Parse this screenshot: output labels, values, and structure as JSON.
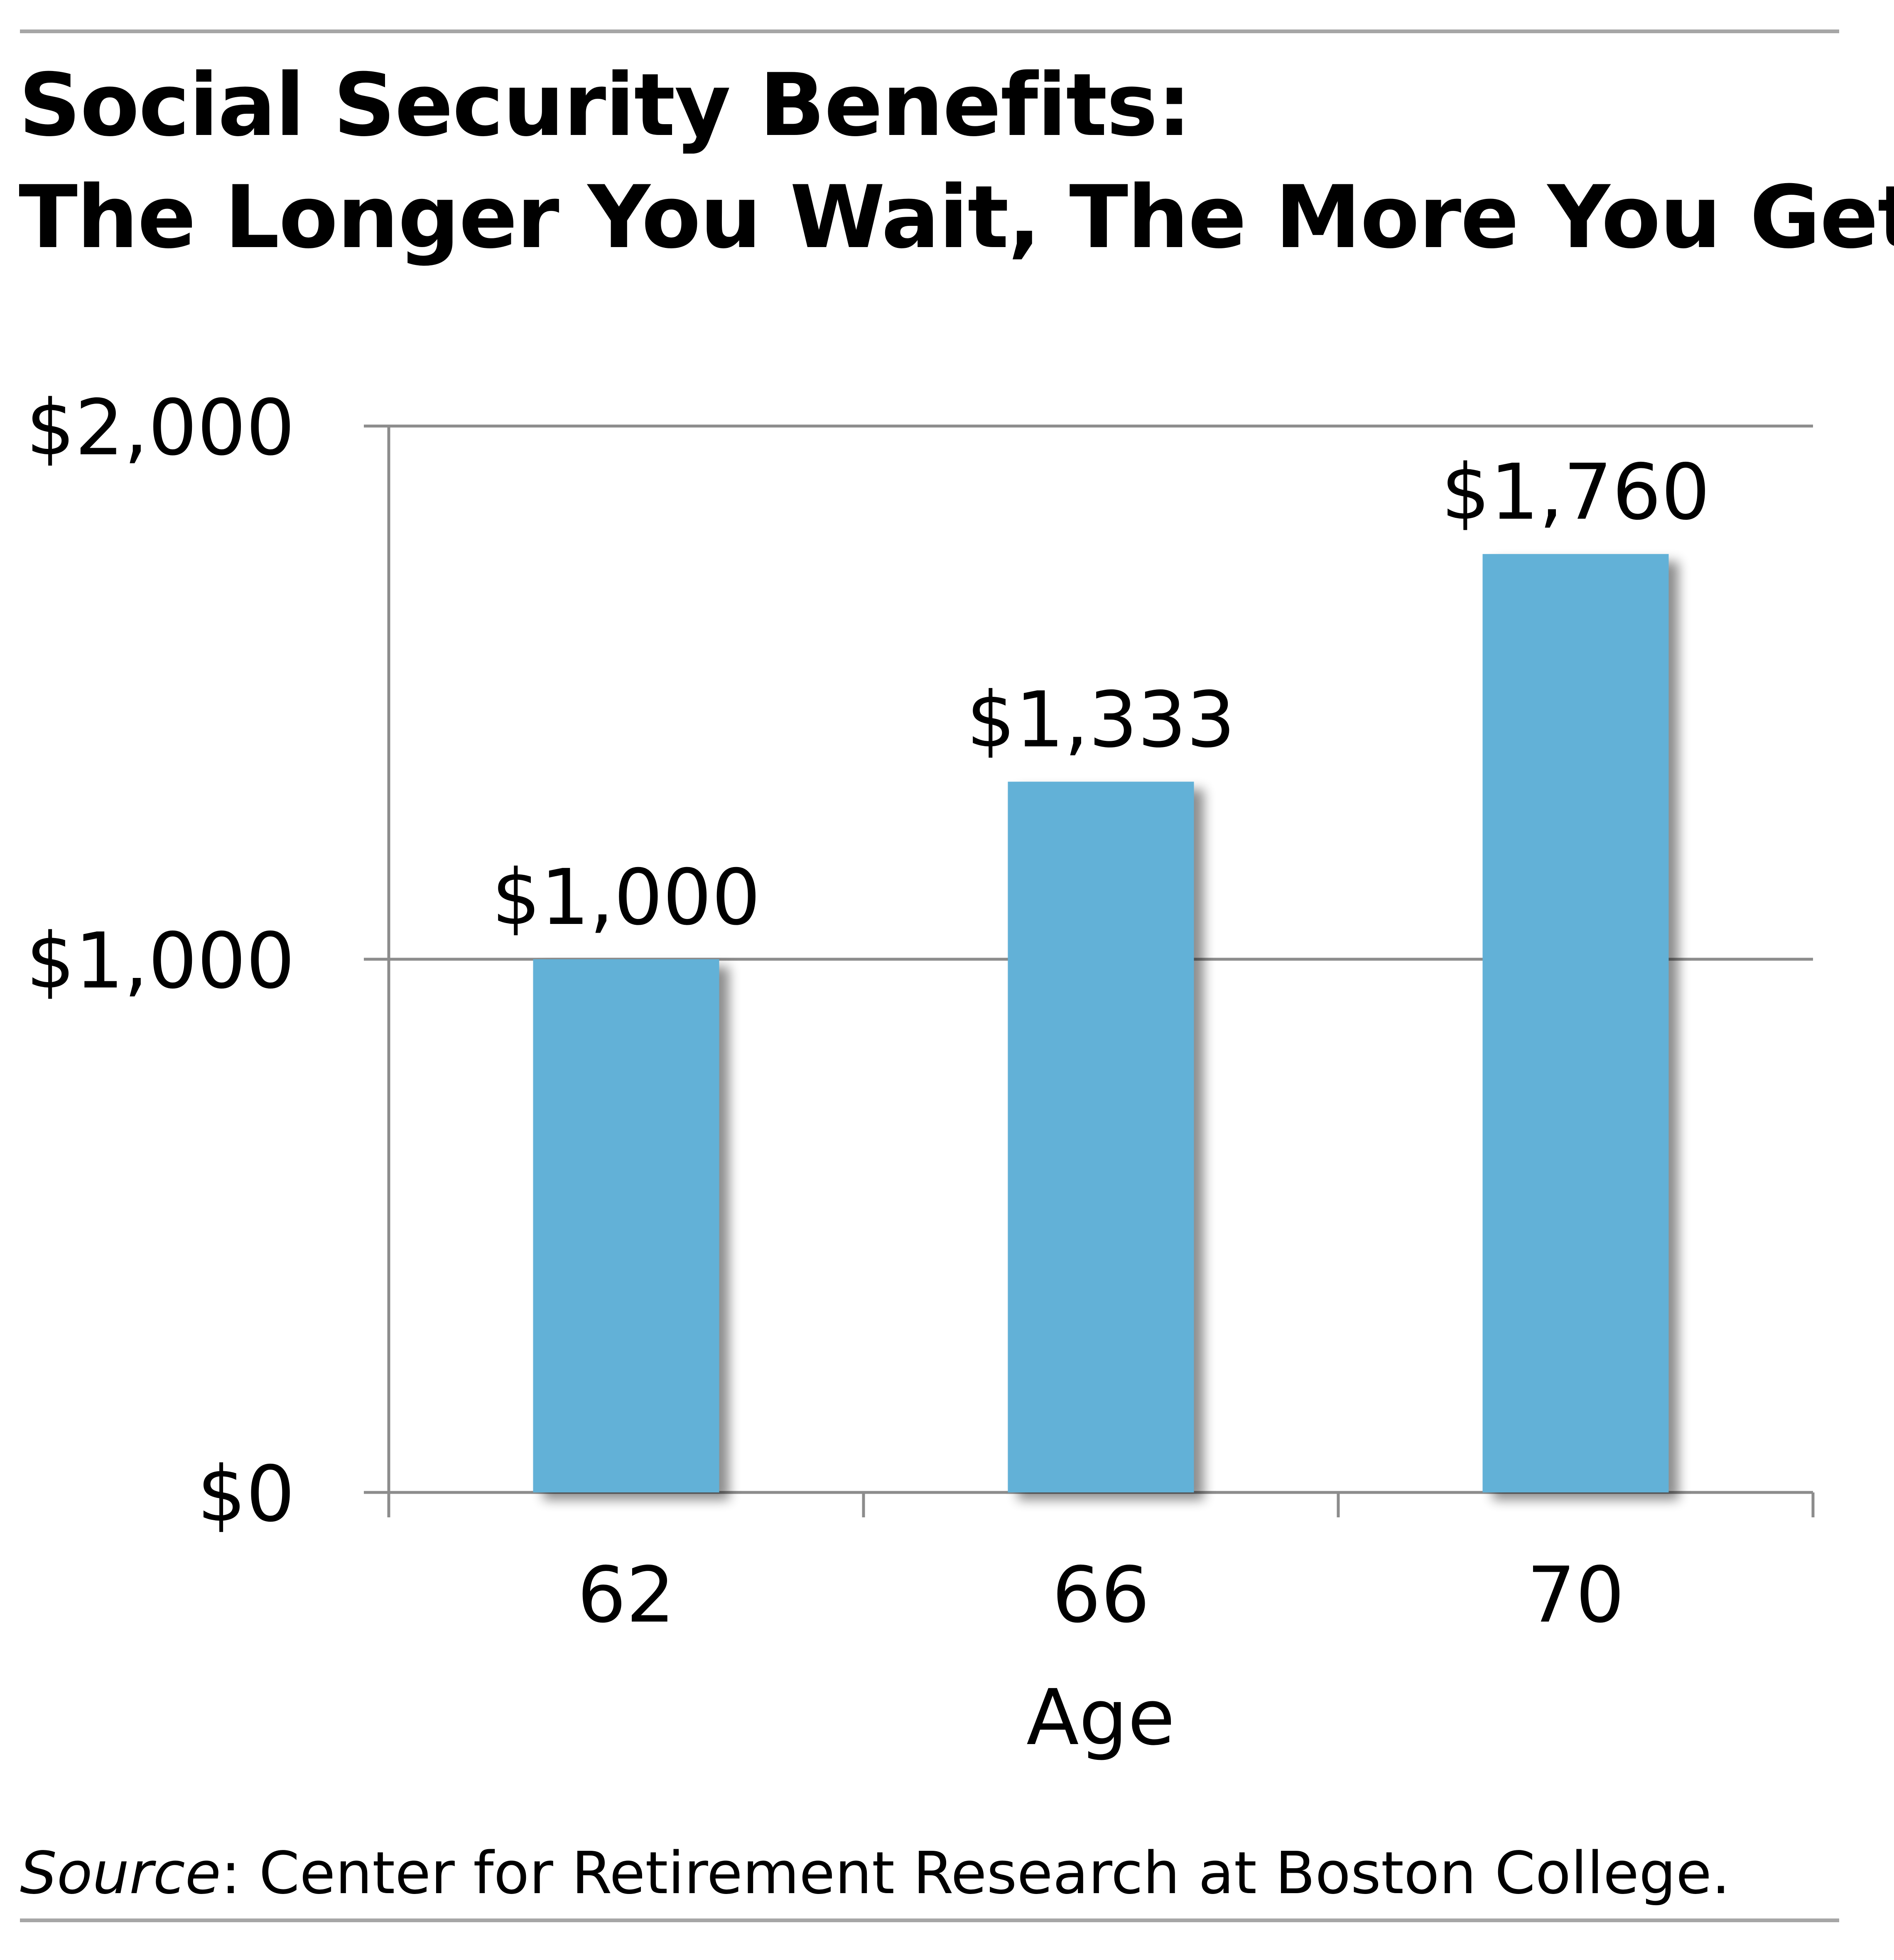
{
  "title_line1": "Social Security Benefits:",
  "title_line2": "The Longer You Wait, The More You Get",
  "source_label": "Source",
  "source_text": ": Center for Retirement Research at Boston College.",
  "chart_data": {
    "type": "bar",
    "title": "Social Security Benefits: The Longer You Wait, The More You Get",
    "xlabel": "Age",
    "ylabel": "",
    "categories": [
      "62",
      "66",
      "70"
    ],
    "values": [
      1000,
      1333,
      1760
    ],
    "data_labels": [
      "$1,000",
      "$1,333",
      "$1,760"
    ],
    "ylim": [
      0,
      2000
    ],
    "yticks": [
      0,
      1000,
      2000
    ],
    "ytick_labels": [
      "$0",
      "$1,000",
      "$2,000"
    ],
    "grid": true,
    "bar_color": "#62b1d7",
    "grid_color": "#8c8c8c"
  }
}
